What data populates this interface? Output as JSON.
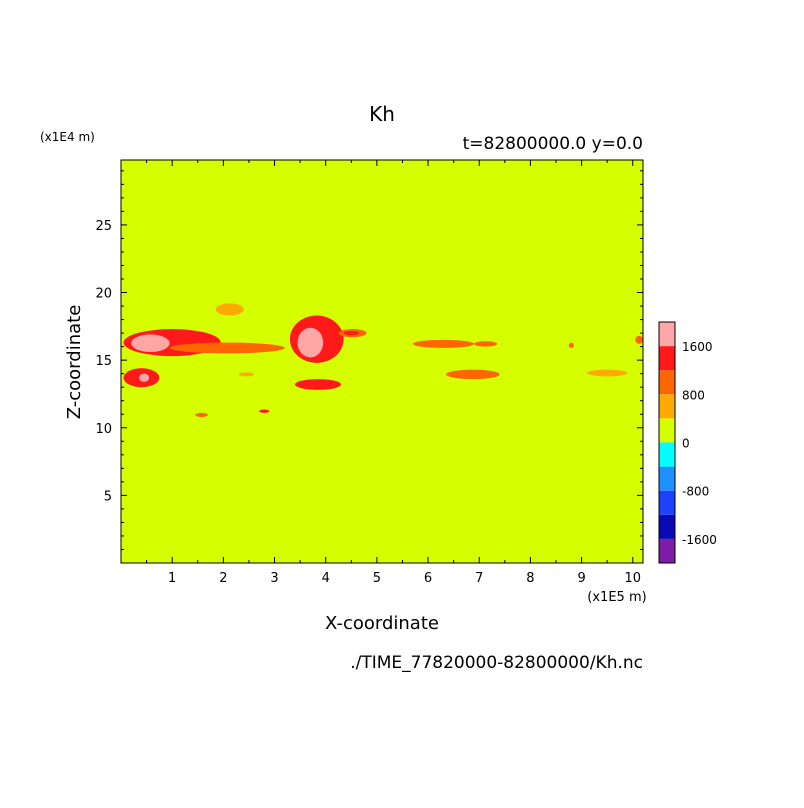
{
  "chart_data": {
    "type": "heatmap",
    "title": "Kh",
    "subtitle": "t=82800000.0 y=0.0",
    "xlabel": "X-coordinate",
    "ylabel": "Z-coordinate",
    "x_unit": "(x1E5 m)",
    "y_unit": "(x1E4 m)",
    "source_file": "./TIME_77820000-82800000/Kh.nc",
    "xlim": [
      0,
      10.2
    ],
    "ylim": [
      0,
      29.8
    ],
    "x_ticks": [
      1,
      2,
      3,
      4,
      5,
      6,
      7,
      8,
      9,
      10
    ],
    "y_ticks": [
      5,
      10,
      15,
      20,
      25
    ],
    "background_value": 0,
    "colorbar": {
      "levels": [
        -2000,
        -1600,
        -1200,
        -800,
        -400,
        0,
        400,
        800,
        1200,
        1600,
        2000
      ],
      "tick_labels": [
        {
          "value": 1600,
          "label": "1600"
        },
        {
          "value": 800,
          "label": "800"
        },
        {
          "value": 0,
          "label": "0"
        },
        {
          "value": -800,
          "label": "-800"
        },
        {
          "value": -1600,
          "label": "-1600"
        }
      ],
      "colors": [
        "#7d1ca7",
        "#0a0ab4",
        "#1e40ff",
        "#1e90ff",
        "#00ffff",
        "#d5ff00",
        "#ffaa00",
        "#ff6600",
        "#ff1a1a",
        "#ffa6a6"
      ]
    },
    "features": [
      {
        "x": [
          0.05,
          1.95
        ],
        "z": [
          15.3,
          17.3
        ],
        "value": 1200
      },
      {
        "x": [
          0.2,
          0.95
        ],
        "z": [
          15.6,
          16.9
        ],
        "value": 1600
      },
      {
        "x": [
          0.35,
          0.6
        ],
        "z": [
          15.8,
          16.3
        ],
        "value": 2000
      },
      {
        "x": [
          0.05,
          0.75
        ],
        "z": [
          13.0,
          14.4
        ],
        "value": 1200
      },
      {
        "x": [
          0.35,
          0.55
        ],
        "z": [
          13.4,
          14.0
        ],
        "value": 1600
      },
      {
        "x": [
          0.95,
          3.2
        ],
        "z": [
          15.5,
          16.3
        ],
        "value": 800
      },
      {
        "x": [
          3.3,
          4.35
        ],
        "z": [
          14.8,
          18.3
        ],
        "value": 1200
      },
      {
        "x": [
          3.45,
          3.95
        ],
        "z": [
          15.2,
          17.4
        ],
        "value": 1600
      },
      {
        "x": [
          3.55,
          3.8
        ],
        "z": [
          15.4,
          16.6
        ],
        "value": 2000
      },
      {
        "x": [
          3.4,
          4.3
        ],
        "z": [
          12.8,
          13.6
        ],
        "value": 1200
      },
      {
        "x": [
          4.25,
          4.8
        ],
        "z": [
          16.7,
          17.3
        ],
        "value": 800
      },
      {
        "x": [
          4.35,
          4.65
        ],
        "z": [
          16.85,
          17.15
        ],
        "value": 1200
      },
      {
        "x": [
          2.7,
          2.9
        ],
        "z": [
          11.1,
          11.35
        ],
        "value": 1200
      },
      {
        "x": [
          1.45,
          1.7
        ],
        "z": [
          10.8,
          11.1
        ],
        "value": 800
      },
      {
        "x": [
          5.7,
          6.9
        ],
        "z": [
          15.9,
          16.5
        ],
        "value": 800
      },
      {
        "x": [
          6.9,
          7.35
        ],
        "z": [
          16.0,
          16.4
        ],
        "value": 800
      },
      {
        "x": [
          6.35,
          7.4
        ],
        "z": [
          13.6,
          14.3
        ],
        "value": 800
      },
      {
        "x": [
          8.75,
          8.85
        ],
        "z": [
          15.9,
          16.3
        ],
        "value": 800
      },
      {
        "x": [
          9.1,
          9.9
        ],
        "z": [
          13.8,
          14.3
        ],
        "value": 400
      },
      {
        "x": [
          10.05,
          10.2
        ],
        "z": [
          16.2,
          16.8
        ],
        "value": 800
      },
      {
        "x": [
          1.85,
          2.4
        ],
        "z": [
          18.3,
          19.2
        ],
        "value": 400
      },
      {
        "x": [
          2.3,
          2.6
        ],
        "z": [
          13.8,
          14.1
        ],
        "value": 400
      }
    ]
  }
}
